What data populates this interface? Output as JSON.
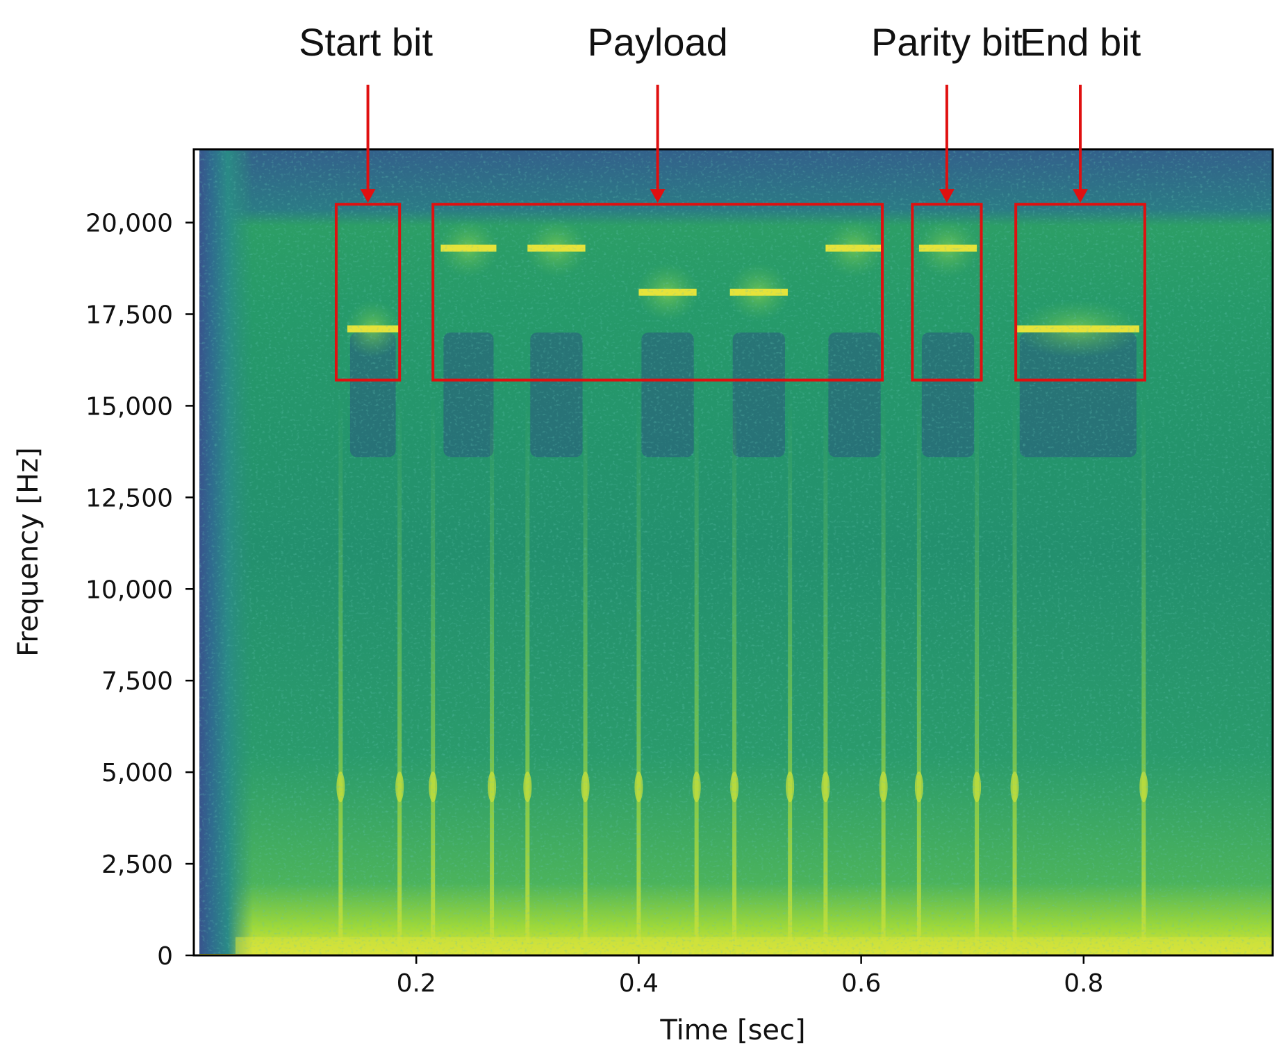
{
  "chart_data": {
    "type": "heatmap",
    "subtype": "spectrogram",
    "colormap": "viridis",
    "xlabel": "Time [sec]",
    "ylabel": "Frequency [Hz]",
    "xlim": [
      0.0,
      0.97
    ],
    "ylim": [
      0,
      22000
    ],
    "xticks": [
      {
        "value": 0.2,
        "label": "0.2"
      },
      {
        "value": 0.4,
        "label": "0.4"
      },
      {
        "value": 0.6,
        "label": "0.6"
      },
      {
        "value": 0.8,
        "label": "0.8"
      }
    ],
    "yticks": [
      {
        "value": 0,
        "label": "0"
      },
      {
        "value": 2500,
        "label": "2,500"
      },
      {
        "value": 5000,
        "label": "5,000"
      },
      {
        "value": 7500,
        "label": "7,500"
      },
      {
        "value": 10000,
        "label": "10,000"
      },
      {
        "value": 12500,
        "label": "12,500"
      },
      {
        "value": 15000,
        "label": "15,000"
      },
      {
        "value": 17500,
        "label": "17,500"
      },
      {
        "value": 20000,
        "label": "20,000"
      }
    ],
    "clicks_sec": [
      0.132,
      0.185,
      0.215,
      0.268,
      0.3,
      0.352,
      0.4,
      0.452,
      0.486,
      0.536,
      0.568,
      0.62,
      0.652,
      0.704,
      0.738,
      0.854
    ],
    "tones": [
      {
        "t_start": 0.138,
        "t_end": 0.184,
        "freq": 17100
      },
      {
        "t_start": 0.222,
        "t_end": 0.272,
        "freq": 19300
      },
      {
        "t_start": 0.3,
        "t_end": 0.352,
        "freq": 19300
      },
      {
        "t_start": 0.4,
        "t_end": 0.452,
        "freq": 18100
      },
      {
        "t_start": 0.482,
        "t_end": 0.534,
        "freq": 18100
      },
      {
        "t_start": 0.568,
        "t_end": 0.62,
        "freq": 19300
      },
      {
        "t_start": 0.652,
        "t_end": 0.704,
        "freq": 19300
      },
      {
        "t_start": 0.74,
        "t_end": 0.85,
        "freq": 17100
      }
    ],
    "annotations": [
      {
        "label": "Start bit",
        "x0": 0.128,
        "x1": 0.185,
        "y0": 15700,
        "y1": 20500
      },
      {
        "label": "Payload",
        "x0": 0.215,
        "x1": 0.619,
        "y0": 15700,
        "y1": 20500
      },
      {
        "label": "Parity bit",
        "x0": 0.646,
        "x1": 0.708,
        "y0": 15700,
        "y1": 20500
      },
      {
        "label": "End bit",
        "x0": 0.739,
        "x1": 0.855,
        "y0": 15700,
        "y1": 20500
      }
    ],
    "colors": {
      "annotation": "#e01010",
      "axis": "#000000",
      "background": "#ffffff"
    }
  }
}
